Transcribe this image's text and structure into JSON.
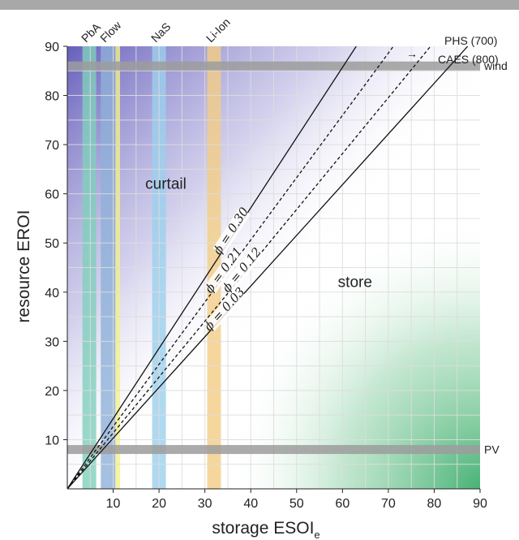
{
  "chart_data": {
    "type": "line",
    "title": "",
    "xlabel": "storage ESOI",
    "xlabel_sub": "e",
    "ylabel": "resource EROI",
    "xlim": [
      0,
      90
    ],
    "ylim": [
      0,
      90
    ],
    "xticks": [
      10,
      20,
      30,
      40,
      50,
      60,
      70,
      80,
      90
    ],
    "yticks": [
      10,
      20,
      30,
      40,
      50,
      60,
      70,
      80,
      90
    ],
    "grid": true,
    "regions": [
      {
        "label": "curtail",
        "x": 17,
        "y": 61
      },
      {
        "label": "store",
        "x": 59,
        "y": 41
      }
    ],
    "storage_technologies": [
      {
        "name": "PbA",
        "x_range": [
          3.3,
          6.3
        ],
        "color": "#7fcfbc"
      },
      {
        "name": "Flow",
        "x_range": [
          7.3,
          10.5
        ],
        "color": "#8fb0d8"
      },
      {
        "name": "Flow (yellow edge)",
        "x_range": [
          10.5,
          11.5
        ],
        "color": "#f4f08a"
      },
      {
        "name": "NaS",
        "x_range": [
          18.5,
          21.5
        ],
        "color": "#9cd0ec"
      },
      {
        "name": "Li-Ion",
        "x_range": [
          30.5,
          33.5
        ],
        "color": "#f2cd86"
      }
    ],
    "tech_labels": [
      "PbA",
      "Flow",
      "NaS",
      "Li-Ion"
    ],
    "offscale_note": {
      "arrow": "→",
      "lines": [
        "PHS (700)",
        "CAES (800)"
      ]
    },
    "resources": [
      {
        "name": "wind",
        "y": 86
      },
      {
        "name": "PV",
        "y": 8
      }
    ],
    "series": [
      {
        "label_prefix": "ϕ = ",
        "phi": "0.30",
        "style": "solid",
        "slope": 1.4286,
        "x": [
          0,
          63
        ],
        "y": [
          0,
          90
        ]
      },
      {
        "label_prefix": "ϕ = ",
        "phi": "0.21",
        "style": "dashed",
        "slope": 1.2658,
        "x": [
          0,
          71.1
        ],
        "y": [
          0,
          90
        ]
      },
      {
        "label_prefix": "ϕ = ",
        "phi": "0.12",
        "style": "dashed",
        "slope": 1.1364,
        "x": [
          0,
          79.2
        ],
        "y": [
          0,
          90
        ]
      },
      {
        "label_prefix": "ϕ = ",
        "phi": "0.03",
        "style": "solid",
        "slope": 1.0309,
        "x": [
          0,
          87.3
        ],
        "y": [
          0,
          90
        ]
      }
    ],
    "colors": {
      "curtail_gradient": "#6f67c3",
      "store_gradient": "#3fae6f",
      "resource_band": "#9c9c9c",
      "grid": "#dddddd"
    }
  }
}
